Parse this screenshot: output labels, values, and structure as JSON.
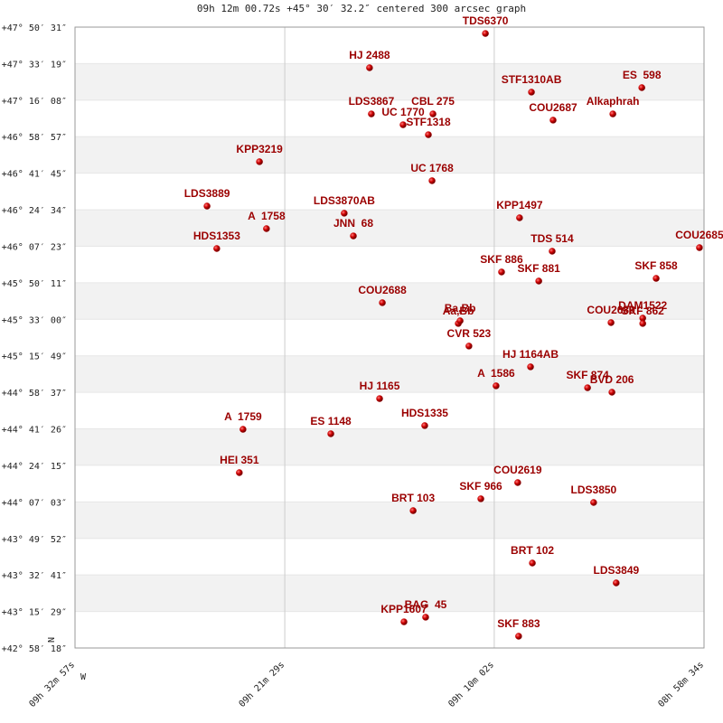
{
  "chart_data": {
    "type": "scatter",
    "title": "09h 12m 00.72s +45° 30′ 32.2″ centered 300 arcsec graph",
    "north_label": "N",
    "west_label": "W",
    "color": "#c00000",
    "grid": true,
    "banded": true,
    "xlim": [
      34377,
      32314
    ],
    "xticks": [
      {
        "value": 34377,
        "label": "09h 32m 57s"
      },
      {
        "value": 33689,
        "label": "09h 21m 29s"
      },
      {
        "value": 33002,
        "label": "09h 10m 02s"
      },
      {
        "value": 32314,
        "label": "08h 58m 34s"
      }
    ],
    "ylim": [
      42.9717,
      47.8419
    ],
    "yticks": [
      {
        "value": 47.8419,
        "label": "+47° 50′ 31″"
      },
      {
        "value": 47.5553,
        "label": "+47° 33′ 19″"
      },
      {
        "value": 47.2689,
        "label": "+47° 16′ 08″"
      },
      {
        "value": 46.9825,
        "label": "+46° 58′ 57″"
      },
      {
        "value": 46.6958,
        "label": "+46° 41′ 45″"
      },
      {
        "value": 46.4094,
        "label": "+46° 24′ 34″"
      },
      {
        "value": 46.1231,
        "label": "+46° 07′ 23″"
      },
      {
        "value": 45.8364,
        "label": "+45° 50′ 11″"
      },
      {
        "value": 45.55,
        "label": "+45° 33′ 00″"
      },
      {
        "value": 45.2636,
        "label": "+45° 15′ 49″"
      },
      {
        "value": 44.9769,
        "label": "+44° 58′ 37″"
      },
      {
        "value": 44.6906,
        "label": "+44° 41′ 26″"
      },
      {
        "value": 44.4042,
        "label": "+44° 24′ 15″"
      },
      {
        "value": 44.1175,
        "label": "+44° 07′ 03″"
      },
      {
        "value": 43.8311,
        "label": "+43° 49′ 52″"
      },
      {
        "value": 43.5447,
        "label": "+43° 32′ 41″"
      },
      {
        "value": 43.2581,
        "label": "+43° 15′ 29″"
      },
      {
        "value": 42.9717,
        "label": "+42° 58′ 18″"
      }
    ],
    "labels": [
      "TDS6370",
      "HJ 2488",
      "STF1310AB",
      "ES  598",
      "Alkaphrah",
      "COU2687",
      "LDS3867",
      "UC 1770",
      "CBL 275",
      "STF1318",
      "KPP3219",
      "UC 1768",
      "LDS3889",
      "LDS3870AB",
      "A  1758",
      "JNN  68",
      "KPP1497",
      "HDS1353",
      "TDS 514",
      "COU2685",
      "SKF 886",
      "SKF 881",
      "SKF 858",
      "COU2688",
      "Aa,Bb",
      "Ba,Bb",
      "COU2689",
      "DAM1522",
      "SKF 862",
      "CVR 523",
      "HJ 1164AB",
      "A  1586",
      "SKF 874",
      "BVD 206",
      "HJ 1165",
      "A  1759",
      "ES 1148",
      "HDS1335",
      "HEI 351",
      "COU2619",
      "SKF 966",
      "BRT 103",
      "LDS3850",
      "BRT 102",
      "LDS3849",
      "BAG  45",
      "KPP1607",
      "SKF 883"
    ],
    "x": [
      33031,
      33411,
      32880,
      32518,
      32613,
      32809,
      33405,
      33301,
      33203,
      33218,
      33772,
      33206,
      33944,
      33494,
      33749,
      33464,
      32919,
      33912,
      32812,
      32329,
      32978,
      32856,
      32471,
      33369,
      33120,
      33114,
      32619,
      32515,
      32515,
      33085,
      32883,
      32996,
      32696,
      32616,
      33378,
      33826,
      33538,
      33230,
      33838,
      32925,
      33046,
      33268,
      32676,
      32877,
      32602,
      33227,
      33298,
      32922
    ],
    "values": [
      47.792,
      47.523,
      47.332,
      47.367,
      47.161,
      47.112,
      47.161,
      47.076,
      47.161,
      46.998,
      46.786,
      46.637,
      46.438,
      46.382,
      46.261,
      46.204,
      46.346,
      46.105,
      46.084,
      46.112,
      45.921,
      45.85,
      45.871,
      45.68,
      45.517,
      45.538,
      45.524,
      45.559,
      45.517,
      45.34,
      45.177,
      45.028,
      45.013,
      44.978,
      44.928,
      44.687,
      44.652,
      44.716,
      44.347,
      44.269,
      44.142,
      44.049,
      44.113,
      43.638,
      43.482,
      43.213,
      43.177,
      43.064
    ]
  }
}
